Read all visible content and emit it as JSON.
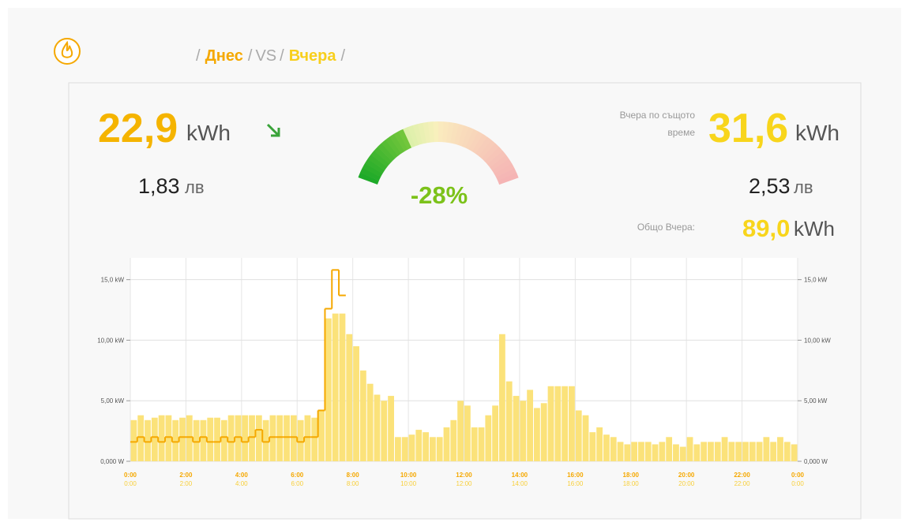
{
  "header": {
    "separator": "/",
    "today": "Днес",
    "vs": "VS",
    "yesterday": "Вчера"
  },
  "today": {
    "energy": "22,9",
    "energy_unit": "kWh",
    "cost": "1,83",
    "cost_unit": "лв"
  },
  "change": "-28%",
  "yesterday": {
    "same_time_label_1": "Вчера по същото",
    "same_time_label_2": "време",
    "energy": "31,6",
    "energy_unit": "kWh",
    "cost": "2,53",
    "cost_unit": "лв",
    "total_label": "Общо Вчера:",
    "total": "89,0",
    "total_unit": "kWh"
  },
  "chart_data": {
    "type": "bar",
    "categories": [
      null,
      null,
      null,
      null,
      null,
      null,
      null,
      null,
      null,
      null,
      null,
      null,
      null,
      null,
      null,
      null,
      null,
      null,
      null,
      null,
      null,
      null,
      null,
      null,
      null,
      null,
      null,
      null,
      null,
      null,
      null,
      null,
      null,
      null,
      null,
      null,
      null,
      null,
      null,
      null,
      null,
      null,
      null,
      null,
      null,
      null,
      null,
      null,
      null,
      null,
      null,
      null,
      null,
      null,
      null,
      null,
      null,
      null,
      null,
      null,
      null,
      null,
      null,
      null,
      null,
      null,
      null,
      null,
      null,
      null,
      null,
      null,
      null,
      null,
      null,
      null,
      null,
      null,
      null,
      null,
      null,
      null,
      null,
      null,
      null,
      null,
      null,
      null,
      null,
      null,
      null,
      null,
      null,
      null,
      null,
      null
    ],
    "series": [
      {
        "type": "bar",
        "color": "#fbe27a",
        "values": [
          3.4,
          3.8,
          3.4,
          3.6,
          3.8,
          3.8,
          3.4,
          3.6,
          3.8,
          3.4,
          3.4,
          3.6,
          3.6,
          3.4,
          3.8,
          3.8,
          3.8,
          3.8,
          3.8,
          3.4,
          3.8,
          3.8,
          3.8,
          3.8,
          3.4,
          3.8,
          3.6,
          4.2,
          11.8,
          12.2,
          12.2,
          10.5,
          9.5,
          7.5,
          6.4,
          5.5,
          5.0,
          5.4,
          2.0,
          2.0,
          2.2,
          2.6,
          2.4,
          2.0,
          2.0,
          2.8,
          3.4,
          5.0,
          4.6,
          2.8,
          2.8,
          3.8,
          4.6,
          10.5,
          6.6,
          5.4,
          5.0,
          5.9,
          4.4,
          4.8,
          6.2,
          6.2,
          6.2,
          6.2,
          4.2,
          3.8,
          2.4,
          2.8,
          2.2,
          2.0,
          1.6,
          1.4,
          1.6,
          1.6,
          1.6,
          1.4,
          1.6,
          2.0,
          1.4,
          1.2,
          2.0,
          1.4,
          1.6,
          1.6,
          1.6,
          2.0,
          1.6,
          1.6,
          1.6,
          1.6,
          1.6,
          2.0,
          1.6,
          2.0,
          1.6,
          1.4
        ]
      },
      {
        "type": "step",
        "color": "#f5a800",
        "values": [
          1.6,
          2.0,
          1.6,
          2.0,
          1.6,
          2.0,
          1.6,
          2.0,
          2.0,
          1.6,
          2.0,
          1.6,
          1.6,
          2.0,
          1.6,
          2.0,
          1.6,
          2.0,
          2.6,
          1.6,
          2.0,
          2.0,
          2.0,
          2.0,
          1.6,
          2.0,
          2.0,
          4.2,
          12.6,
          15.8,
          13.7,
          null,
          null,
          null,
          null,
          null,
          null,
          null,
          null,
          null,
          null,
          null,
          null,
          null,
          null,
          null,
          null,
          null,
          null,
          null,
          null,
          null,
          null,
          null,
          null,
          null,
          null,
          null,
          null,
          null,
          null,
          null,
          null,
          null,
          null,
          null,
          null,
          null,
          null,
          null,
          null,
          null,
          null,
          null,
          null,
          null,
          null,
          null,
          null,
          null,
          null,
          null,
          null,
          null,
          null,
          null,
          null,
          null,
          null,
          null,
          null,
          null,
          null,
          null,
          null,
          null
        ]
      }
    ],
    "xlim": [
      0,
      24
    ],
    "xticks": [
      {
        "value": 0,
        "label": "0:00"
      },
      {
        "value": 2,
        "label": "2:00"
      },
      {
        "value": 4,
        "label": "4:00"
      },
      {
        "value": 6,
        "label": "6:00"
      },
      {
        "value": 8,
        "label": "8:00"
      },
      {
        "value": 10,
        "label": "10:00"
      },
      {
        "value": 12,
        "label": "12:00"
      },
      {
        "value": 14,
        "label": "14:00"
      },
      {
        "value": 16,
        "label": "16:00"
      },
      {
        "value": 18,
        "label": "18:00"
      },
      {
        "value": 20,
        "label": "20:00"
      },
      {
        "value": 22,
        "label": "22:00"
      },
      {
        "value": 24,
        "label": "0:00"
      }
    ],
    "ylim": [
      0,
      16.8
    ],
    "yticks": [
      {
        "value": 0,
        "label": "0,000 W"
      },
      {
        "value": 5,
        "label": "5,00 kW"
      },
      {
        "value": 10,
        "label": "10,00 kW"
      },
      {
        "value": 15,
        "label": "15,0 kW"
      }
    ],
    "grid": true
  }
}
